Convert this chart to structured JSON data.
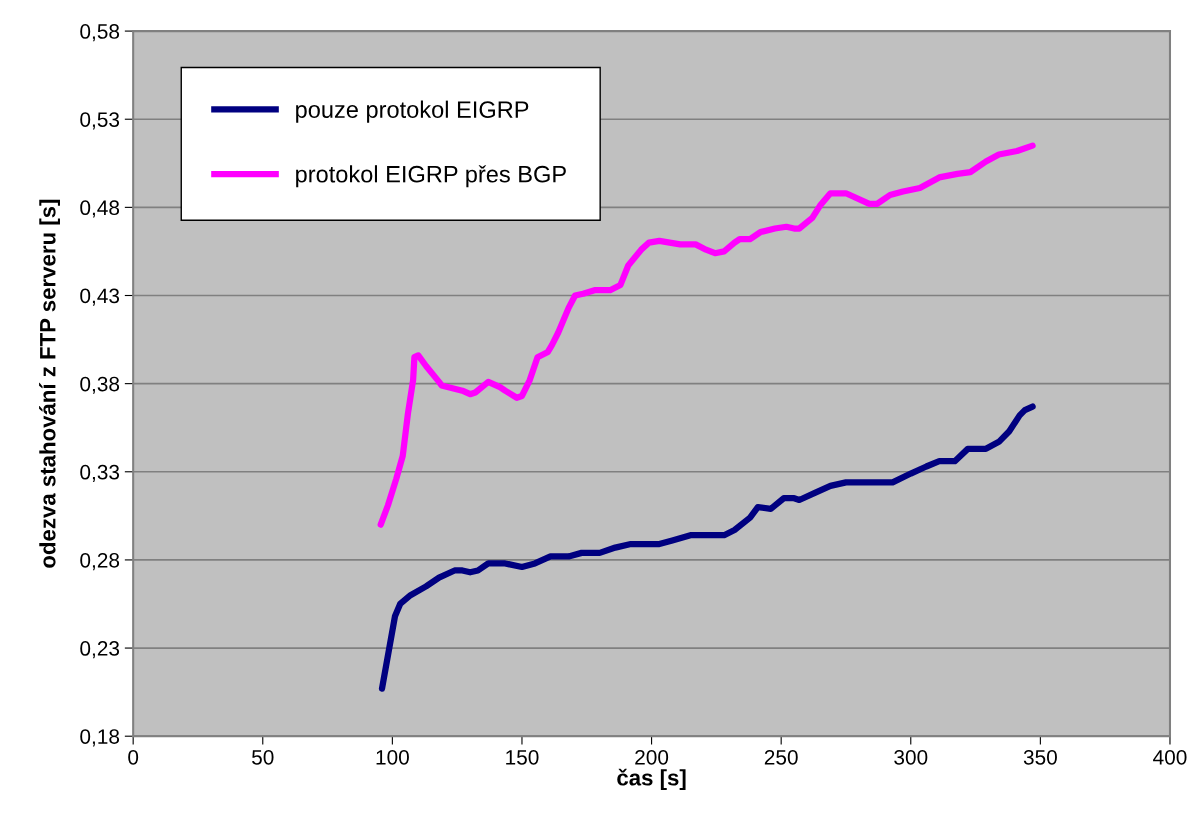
{
  "chart_data": {
    "type": "line",
    "xlabel": "čas [s]",
    "ylabel": "odezva stahování z FTP serveru [s]",
    "xlim": [
      0,
      400
    ],
    "xticks": [
      0,
      50,
      100,
      150,
      200,
      250,
      300,
      350,
      400
    ],
    "ylim": [
      0.18,
      0.58
    ],
    "yticks": [
      {
        "value": 0.18,
        "label": "0,18"
      },
      {
        "value": 0.23,
        "label": "0,23"
      },
      {
        "value": 0.28,
        "label": "0,28"
      },
      {
        "value": 0.33,
        "label": "0,33"
      },
      {
        "value": 0.38,
        "label": "0,38"
      },
      {
        "value": 0.43,
        "label": "0,43"
      },
      {
        "value": 0.48,
        "label": "0,48"
      },
      {
        "value": 0.53,
        "label": "0,53"
      },
      {
        "value": 0.58,
        "label": "0,58"
      }
    ],
    "grid": "y",
    "legend": "top left",
    "marker": "none",
    "line_style": "solid",
    "series": [
      {
        "name": "pouze protokol EIGRP",
        "color": "#000080",
        "x": [
          96,
          101,
          103,
          107,
          113,
          118,
          124,
          127,
          130,
          133,
          137,
          143.5,
          150,
          155,
          161,
          168,
          173,
          180,
          186,
          192,
          203,
          208,
          215,
          228,
          232,
          238,
          241,
          246,
          251,
          255,
          257,
          263,
          269,
          275,
          293,
          300,
          306,
          311,
          317,
          322,
          329,
          334,
          338,
          342,
          344,
          347
        ],
        "values": [
          0.207,
          0.248,
          0.255,
          0.26,
          0.265,
          0.27,
          0.274,
          0.274,
          0.273,
          0.274,
          0.278,
          0.278,
          0.276,
          0.278,
          0.282,
          0.282,
          0.284,
          0.284,
          0.287,
          0.289,
          0.289,
          0.291,
          0.294,
          0.294,
          0.297,
          0.304,
          0.31,
          0.309,
          0.315,
          0.315,
          0.314,
          0.318,
          0.322,
          0.324,
          0.324,
          0.329,
          0.333,
          0.336,
          0.336,
          0.343,
          0.343,
          0.347,
          0.353,
          0.362,
          0.365,
          0.367
        ]
      },
      {
        "name": "protokol EIGRP přes BGP",
        "color": "#ff00ff",
        "x": [
          95.5,
          98.3,
          101.5,
          104,
          106,
          108,
          108.5,
          110,
          113,
          118,
          119,
          127,
          130,
          132,
          137,
          141.5,
          143.5,
          148,
          150,
          153,
          156,
          160,
          161.6,
          164,
          168,
          170.5,
          173.6,
          178,
          184,
          188,
          191,
          196,
          199,
          203,
          207,
          211,
          217,
          221,
          224.5,
          228,
          232,
          234,
          238,
          242,
          247.6,
          252,
          255,
          257,
          262,
          265,
          269,
          275,
          284,
          287,
          292,
          297,
          303.5,
          311,
          318,
          323,
          329,
          334,
          341,
          347
        ],
        "values": [
          0.3,
          0.311,
          0.326,
          0.339,
          0.363,
          0.382,
          0.395,
          0.396,
          0.39,
          0.381,
          0.379,
          0.376,
          0.374,
          0.375,
          0.381,
          0.378,
          0.376,
          0.372,
          0.373,
          0.382,
          0.395,
          0.398,
          0.402,
          0.409,
          0.423,
          0.43,
          0.431,
          0.433,
          0.433,
          0.436,
          0.447,
          0.456,
          0.46,
          0.461,
          0.46,
          0.459,
          0.459,
          0.456,
          0.454,
          0.455,
          0.46,
          0.462,
          0.462,
          0.466,
          0.468,
          0.469,
          0.468,
          0.468,
          0.474,
          0.481,
          0.488,
          0.488,
          0.482,
          0.482,
          0.487,
          0.489,
          0.491,
          0.497,
          0.499,
          0.5,
          0.506,
          0.51,
          0.512,
          0.515
        ]
      }
    ]
  }
}
